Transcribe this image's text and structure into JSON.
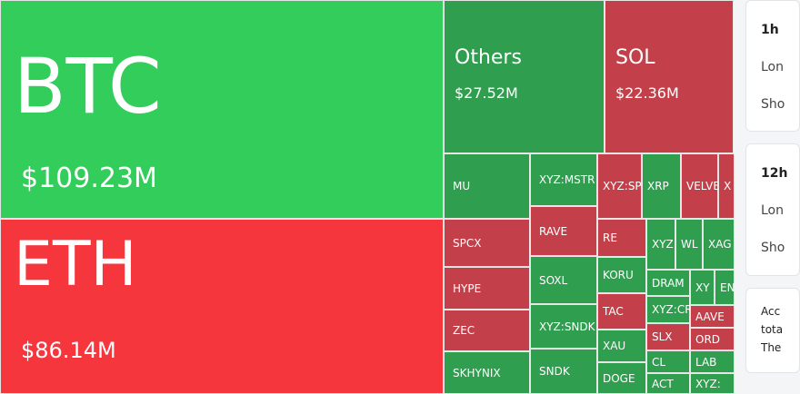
{
  "treemap": {
    "big_tiles": [
      {
        "label": "BTC",
        "value": "$109.23M",
        "color": "#33cd5b"
      },
      {
        "label": "ETH",
        "value": "$86.14M",
        "color": "#f5363d"
      },
      {
        "label": "Others",
        "value": "$27.52M",
        "color": "#2f9e4f"
      },
      {
        "label": "SOL",
        "value": "$22.36M",
        "color": "#c3404a"
      }
    ],
    "small_tiles": [
      {
        "label": "MU",
        "color": "#2f9e4f"
      },
      {
        "label": "XYZ:MSTR",
        "color": "#2f9e4f"
      },
      {
        "label": "XYZ:SP",
        "color": "#c3404a"
      },
      {
        "label": "XRP",
        "color": "#2f9e4f"
      },
      {
        "label": "VELVE",
        "color": "#c3404a"
      },
      {
        "label": "X",
        "color": "#c3404a"
      },
      {
        "label": "SPCX",
        "color": "#c3404a"
      },
      {
        "label": "RAVE",
        "color": "#c3404a"
      },
      {
        "label": "RE",
        "color": "#c3404a"
      },
      {
        "label": "XYZ",
        "color": "#2f9e4f"
      },
      {
        "label": "WL",
        "color": "#2f9e4f"
      },
      {
        "label": "XAG",
        "color": "#2f9e4f"
      },
      {
        "label": "HYPE",
        "color": "#c3404a"
      },
      {
        "label": "SOXL",
        "color": "#2f9e4f"
      },
      {
        "label": "KORU",
        "color": "#2f9e4f"
      },
      {
        "label": "DRAM",
        "color": "#2f9e4f"
      },
      {
        "label": "XY",
        "color": "#2f9e4f"
      },
      {
        "label": "EN",
        "color": "#2f9e4f"
      },
      {
        "label": "ZEC",
        "color": "#c3404a"
      },
      {
        "label": "XYZ:SNDK",
        "color": "#2f9e4f"
      },
      {
        "label": "TAC",
        "color": "#c3404a"
      },
      {
        "label": "XYZ:CR",
        "color": "#2f9e4f"
      },
      {
        "label": "AAVE",
        "color": "#c3404a"
      },
      {
        "label": "SKHYNIX",
        "color": "#2f9e4f"
      },
      {
        "label": "SNDK",
        "color": "#2f9e4f"
      },
      {
        "label": "XAU",
        "color": "#2f9e4f"
      },
      {
        "label": "SLX",
        "color": "#c3404a"
      },
      {
        "label": "ORD",
        "color": "#c3404a"
      },
      {
        "label": "DOGE",
        "color": "#2f9e4f"
      },
      {
        "label": "CL",
        "color": "#2f9e4f"
      },
      {
        "label": "LAB",
        "color": "#2f9e4f"
      },
      {
        "label": "ACT",
        "color": "#2f9e4f"
      },
      {
        "label": "XYZ:",
        "color": "#2f9e4f"
      }
    ]
  },
  "sidebar": {
    "cards": [
      {
        "title": "1h",
        "lines": [
          "Lon",
          "Sho"
        ]
      },
      {
        "title": "12h",
        "lines": [
          "Lon",
          "Sho"
        ]
      },
      {
        "title": "",
        "lines": [
          "Acc",
          "tota",
          "The"
        ]
      }
    ]
  }
}
